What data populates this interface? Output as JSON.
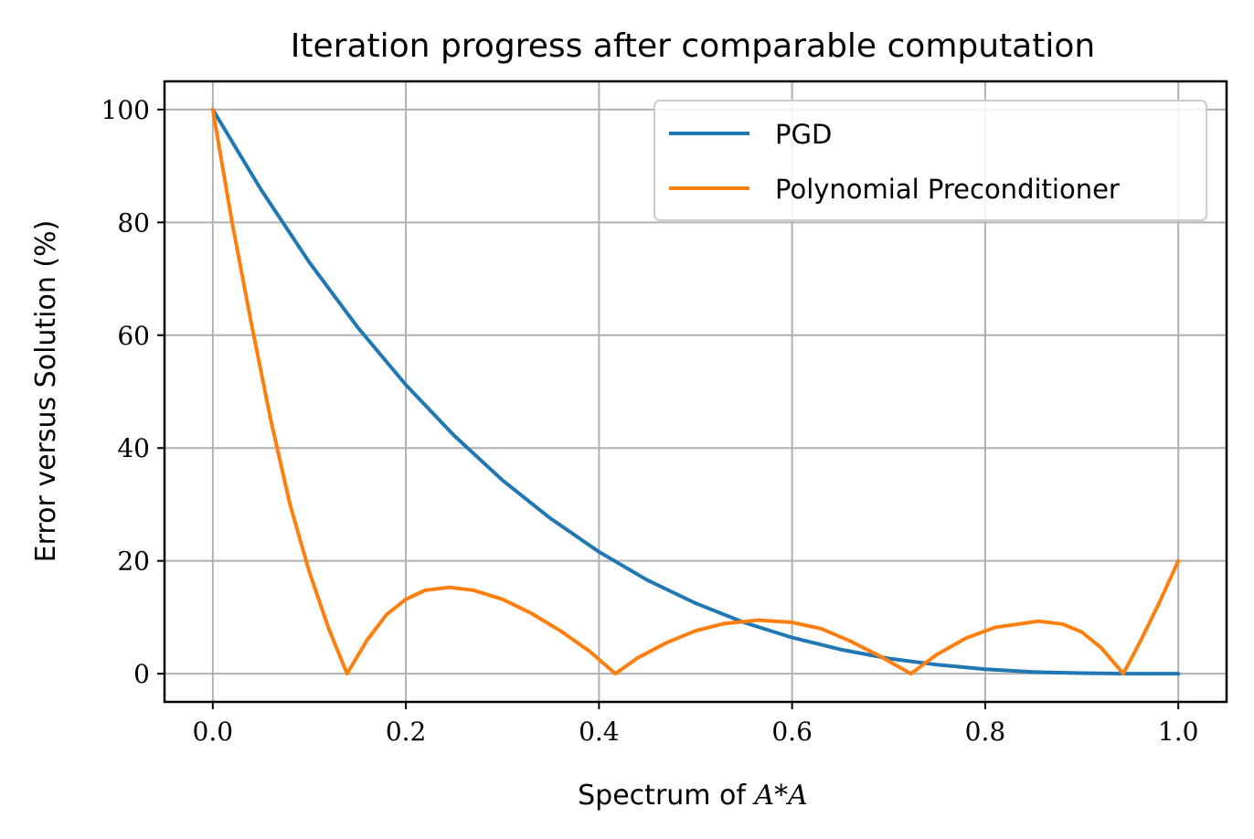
{
  "chart_data": {
    "type": "line",
    "title": "Iteration progress after comparable computation",
    "xlabel_prefix": "Spectrum of ",
    "xlabel_math": "A*A",
    "ylabel": "Error versus Solution (%)",
    "xlim": [
      -0.05,
      1.05
    ],
    "ylim": [
      -5,
      105
    ],
    "xticks": [
      0.0,
      0.2,
      0.4,
      0.6,
      0.8,
      1.0
    ],
    "xtick_labels": [
      "0.0",
      "0.2",
      "0.4",
      "0.6",
      "0.8",
      "1.0"
    ],
    "yticks": [
      0,
      20,
      40,
      60,
      80,
      100
    ],
    "ytick_labels": [
      "0",
      "20",
      "40",
      "60",
      "80",
      "100"
    ],
    "grid": true,
    "legend_position": "top-right",
    "series": [
      {
        "name": "PGD",
        "color": "#1f77b4",
        "x": [
          0.0,
          0.05,
          0.1,
          0.15,
          0.2,
          0.25,
          0.3,
          0.35,
          0.4,
          0.45,
          0.5,
          0.55,
          0.6,
          0.65,
          0.7,
          0.75,
          0.8,
          0.85,
          0.9,
          0.95,
          1.0
        ],
        "y": [
          100,
          85.8,
          72.9,
          61.4,
          51.2,
          42.2,
          34.3,
          27.5,
          21.6,
          16.6,
          12.5,
          9.1,
          6.4,
          4.3,
          2.7,
          1.6,
          0.8,
          0.3,
          0.1,
          0.01,
          0
        ]
      },
      {
        "name": "Polynomial Preconditioner",
        "color": "#ff7f0e",
        "x": [
          0.0,
          0.02,
          0.04,
          0.06,
          0.08,
          0.1,
          0.12,
          0.139,
          0.16,
          0.18,
          0.2,
          0.22,
          0.245,
          0.27,
          0.3,
          0.33,
          0.36,
          0.39,
          0.417,
          0.44,
          0.47,
          0.5,
          0.53,
          0.565,
          0.6,
          0.63,
          0.66,
          0.69,
          0.723,
          0.75,
          0.78,
          0.81,
          0.855,
          0.88,
          0.9,
          0.92,
          0.943,
          0.96,
          0.98,
          1.0
        ],
        "y": [
          100,
          80,
          62,
          45,
          30,
          18,
          8,
          0,
          6,
          10.5,
          13.2,
          14.8,
          15.3,
          14.8,
          13.2,
          10.7,
          7.6,
          4.0,
          0,
          2.8,
          5.5,
          7.6,
          8.9,
          9.5,
          9.1,
          8.0,
          5.8,
          3.2,
          0,
          3.4,
          6.3,
          8.2,
          9.3,
          8.8,
          7.4,
          4.6,
          0,
          5.5,
          12.5,
          20
        ]
      }
    ]
  }
}
